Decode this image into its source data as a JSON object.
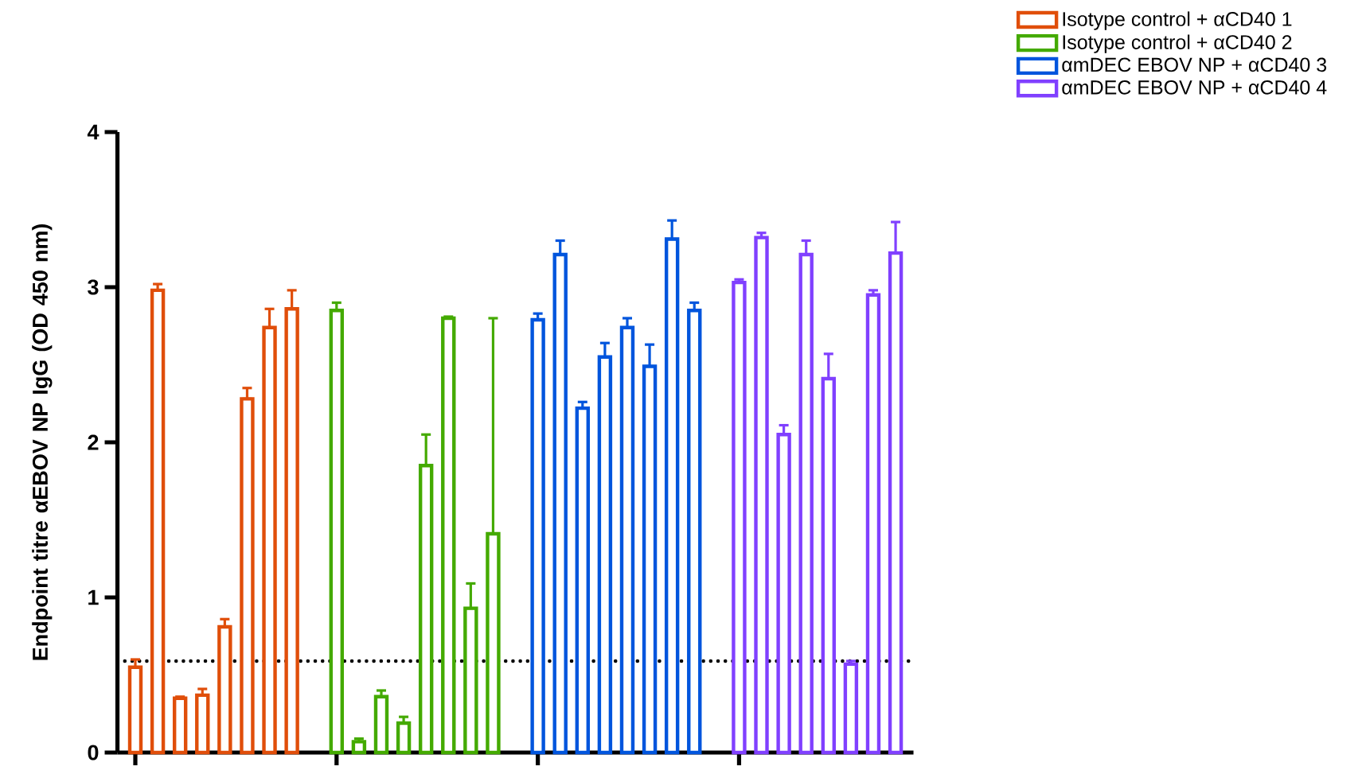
{
  "chart_data": {
    "type": "bar",
    "ylabel": "Endpoint titre αEBOV NP IgG (OD 450 nm)",
    "categories": [
      null,
      null,
      null,
      null,
      null,
      null,
      null,
      null,
      null,
      null,
      null,
      null,
      null,
      null,
      null,
      null,
      null,
      null,
      null,
      null,
      null,
      null,
      null,
      null,
      null,
      null,
      null,
      null,
      null,
      null,
      null,
      null,
      null,
      null,
      null
    ],
    "series": [
      {
        "name": "Isotype control + αCD40 1",
        "color": "#e04e0a",
        "values": [
          0.55,
          2.98,
          0.35,
          0.37,
          0.81,
          2.28,
          2.74,
          2.86,
          null,
          null,
          null,
          null,
          null,
          null,
          null,
          null,
          null,
          null,
          null,
          null,
          null,
          null,
          null,
          null,
          null,
          null,
          null,
          null,
          null,
          null,
          null,
          null,
          null,
          null,
          null
        ],
        "errors": [
          [
            0.55,
            0.6
          ],
          [
            2.98,
            3.02
          ],
          [
            0.35,
            0.36
          ],
          [
            0.37,
            0.41
          ],
          [
            0.81,
            0.86
          ],
          [
            2.28,
            2.35
          ],
          [
            2.74,
            2.86
          ],
          [
            2.86,
            2.98
          ],
          null,
          null,
          null,
          null,
          null,
          null,
          null,
          null,
          null,
          null,
          null,
          null,
          null,
          null,
          null,
          null,
          null,
          null,
          null,
          null,
          null,
          null,
          null,
          null,
          null,
          null,
          null
        ]
      },
      {
        "name": "Isotype control + αCD40 2",
        "color": "#44aa00",
        "values": [
          null,
          null,
          null,
          null,
          null,
          null,
          null,
          null,
          null,
          2.85,
          0.07,
          0.36,
          0.19,
          1.85,
          2.8,
          0.93,
          1.41,
          null,
          null,
          null,
          null,
          null,
          null,
          null,
          null,
          null,
          null,
          null,
          null,
          null,
          null,
          null,
          null,
          null,
          null
        ],
        "errors": [
          null,
          null,
          null,
          null,
          null,
          null,
          null,
          null,
          null,
          [
            2.85,
            2.9
          ],
          [
            0.07,
            0.09
          ],
          [
            0.36,
            0.4
          ],
          [
            0.19,
            0.23
          ],
          [
            1.85,
            2.05
          ],
          [
            2.8,
            2.81
          ],
          [
            0.93,
            1.09
          ],
          [
            1.41,
            2.8
          ],
          null,
          null,
          null,
          null,
          null,
          null,
          null,
          null,
          null,
          null,
          null,
          null,
          null,
          null,
          null,
          null,
          null,
          null
        ]
      },
      {
        "name": "αmDEC EBOV NP + αCD40 3",
        "color": "#0055dd",
        "values": [
          null,
          null,
          null,
          null,
          null,
          null,
          null,
          null,
          null,
          null,
          null,
          null,
          null,
          null,
          null,
          null,
          null,
          null,
          2.79,
          3.21,
          2.22,
          2.55,
          2.74,
          2.49,
          3.31,
          2.85,
          null,
          null,
          null,
          null,
          null,
          null,
          null,
          null,
          null
        ],
        "errors": [
          null,
          null,
          null,
          null,
          null,
          null,
          null,
          null,
          null,
          null,
          null,
          null,
          null,
          null,
          null,
          null,
          null,
          null,
          [
            2.79,
            2.83
          ],
          [
            3.21,
            3.3
          ],
          [
            2.22,
            2.26
          ],
          [
            2.55,
            2.64
          ],
          [
            2.74,
            2.8
          ],
          [
            2.49,
            2.63
          ],
          [
            3.31,
            3.43
          ],
          [
            2.85,
            2.9
          ],
          null,
          null,
          null,
          null,
          null,
          null,
          null,
          null,
          null
        ]
      },
      {
        "name": "αmDEC EBOV NP + αCD40 4",
        "color": "#8040ff",
        "values": [
          null,
          null,
          null,
          null,
          null,
          null,
          null,
          null,
          null,
          null,
          null,
          null,
          null,
          null,
          null,
          null,
          null,
          null,
          null,
          null,
          null,
          null,
          null,
          null,
          null,
          null,
          null,
          3.03,
          3.32,
          2.05,
          3.21,
          2.41,
          0.57,
          2.95,
          3.22
        ],
        "errors": [
          null,
          null,
          null,
          null,
          null,
          null,
          null,
          null,
          null,
          null,
          null,
          null,
          null,
          null,
          null,
          null,
          null,
          null,
          null,
          null,
          null,
          null,
          null,
          null,
          null,
          null,
          null,
          [
            3.03,
            3.05
          ],
          [
            3.32,
            3.35
          ],
          [
            2.05,
            2.11
          ],
          [
            3.21,
            3.3
          ],
          [
            2.41,
            2.57
          ],
          [
            0.57,
            0.59
          ],
          [
            2.95,
            2.98
          ],
          [
            3.22,
            3.42
          ]
        ]
      }
    ],
    "ylim": [
      0,
      4
    ],
    "yticks": [
      0,
      1,
      2,
      3,
      4
    ],
    "ref_lines": [
      {
        "axis": "y",
        "value": 0.59,
        "color": "#000000",
        "line_style": "dotted"
      }
    ],
    "legend": "top right"
  }
}
